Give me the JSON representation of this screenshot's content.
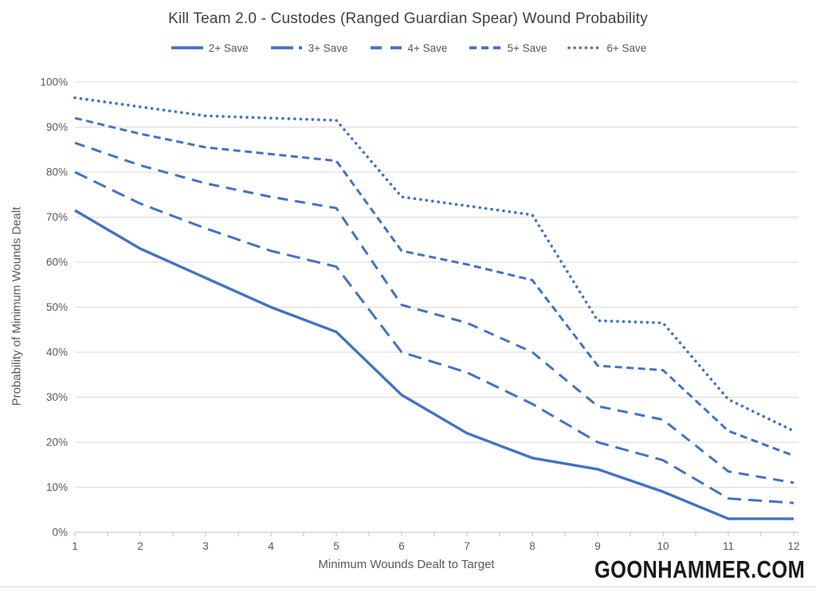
{
  "watermark": "GOONHAMMER.COM",
  "chart_data": {
    "type": "line",
    "title": "Kill Team 2.0 - Custodes (Ranged Guardian Spear) Wound Probability",
    "xlabel": "Minimum Wounds Dealt to Target",
    "ylabel": "Probability of Minimum Wounds Dealt",
    "categories": [
      1,
      2,
      3,
      4,
      5,
      6,
      7,
      8,
      9,
      10,
      11,
      12
    ],
    "y_ticks": [
      "0%",
      "10%",
      "20%",
      "30%",
      "40%",
      "50%",
      "60%",
      "70%",
      "80%",
      "90%",
      "100%"
    ],
    "ylim": [
      0,
      100
    ],
    "grid": "horizontal",
    "legend_position": "top",
    "line_color": "#4472C4",
    "series": [
      {
        "name": "2+ Save",
        "dash": "solid",
        "values": [
          71.5,
          63,
          56.5,
          50,
          44.5,
          30.5,
          22,
          16.5,
          14,
          9,
          3,
          3
        ]
      },
      {
        "name": "3+ Save",
        "dash": "long-dash",
        "values": [
          80,
          73,
          67.5,
          62.5,
          59,
          40,
          35.5,
          28.5,
          20,
          16,
          7.5,
          6.5
        ]
      },
      {
        "name": "4+ Save",
        "dash": "medium-dash",
        "values": [
          86.5,
          81.5,
          77.5,
          74.5,
          72,
          50.5,
          46.5,
          40,
          28,
          25,
          13.5,
          11
        ]
      },
      {
        "name": "5+ Save",
        "dash": "short-dash",
        "values": [
          92,
          88.5,
          85.5,
          84,
          82.5,
          62.5,
          59.5,
          56,
          37,
          36,
          22.5,
          17
        ]
      },
      {
        "name": "6+ Save",
        "dash": "dotted",
        "values": [
          96.5,
          94.5,
          92.5,
          92,
          91.5,
          74.5,
          72.5,
          70.5,
          47,
          46.5,
          29.5,
          22.5
        ]
      }
    ]
  }
}
